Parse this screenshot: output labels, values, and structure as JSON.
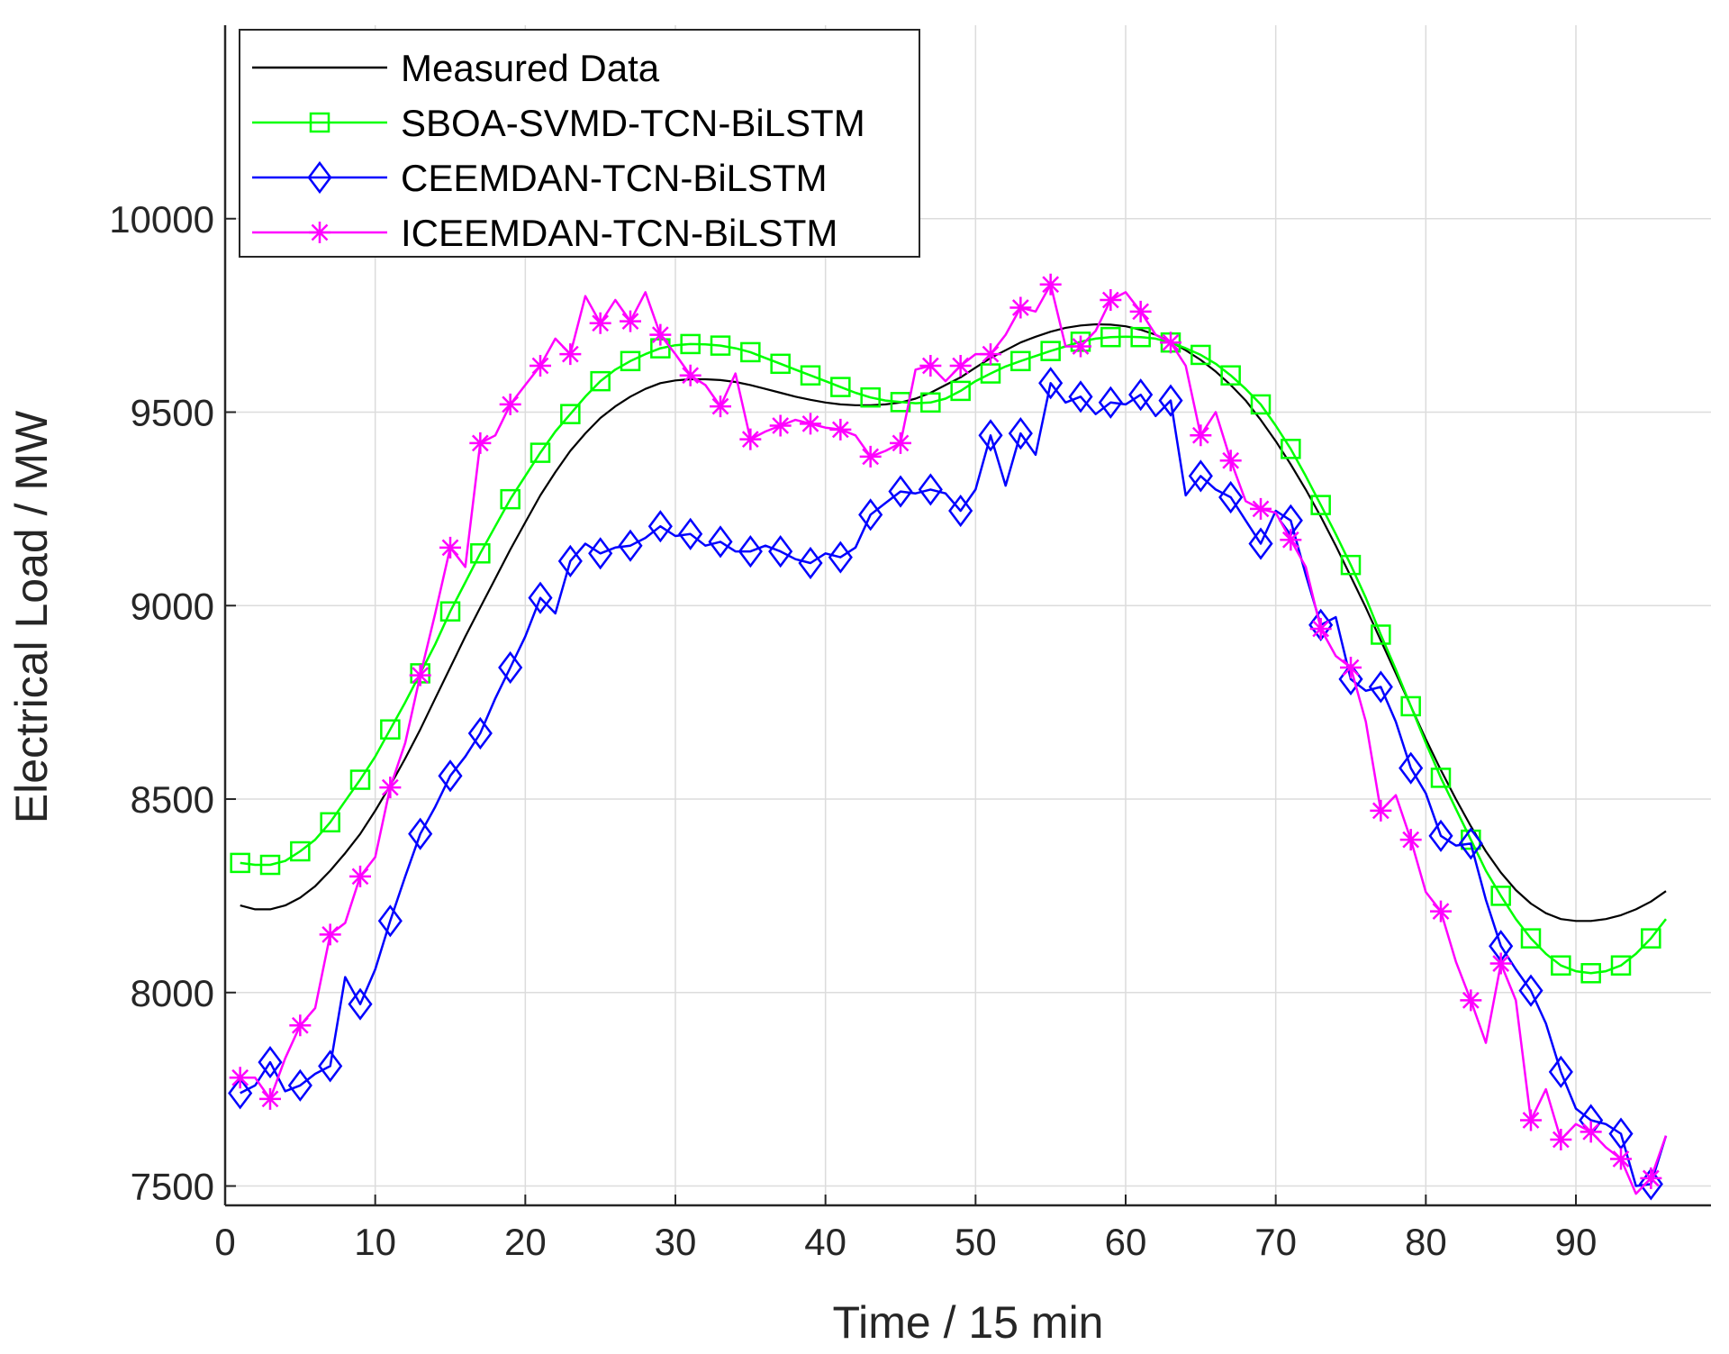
{
  "chart_data": {
    "type": "line",
    "title": "",
    "xlabel": "Time / 15 min",
    "ylabel": "Electrical Load / MW",
    "xlim": [
      0,
      99
    ],
    "ylim": [
      7450,
      10500
    ],
    "xticks": [
      0,
      10,
      20,
      30,
      40,
      50,
      60,
      70,
      80,
      90
    ],
    "yticks": [
      7500,
      8000,
      8500,
      9000,
      9500,
      10000
    ],
    "grid": true,
    "legend_position": "top-left",
    "x": [
      1,
      2,
      3,
      4,
      5,
      6,
      7,
      8,
      9,
      10,
      11,
      12,
      13,
      14,
      15,
      16,
      17,
      18,
      19,
      20,
      21,
      22,
      23,
      24,
      25,
      26,
      27,
      28,
      29,
      30,
      31,
      32,
      33,
      34,
      35,
      36,
      37,
      38,
      39,
      40,
      41,
      42,
      43,
      44,
      45,
      46,
      47,
      48,
      49,
      50,
      51,
      52,
      53,
      54,
      55,
      56,
      57,
      58,
      59,
      60,
      61,
      62,
      63,
      64,
      65,
      66,
      67,
      68,
      69,
      70,
      71,
      72,
      73,
      74,
      75,
      76,
      77,
      78,
      79,
      80,
      81,
      82,
      83,
      84,
      85,
      86,
      87,
      88,
      89,
      90,
      91,
      92,
      93,
      94,
      95,
      96
    ],
    "series": [
      {
        "name": "Measured Data",
        "color": "#000000",
        "marker": "none",
        "values": [
          8225,
          8215,
          8215,
          8225,
          8245,
          8275,
          8315,
          8360,
          8410,
          8470,
          8535,
          8605,
          8680,
          8760,
          8840,
          8920,
          8995,
          9070,
          9145,
          9215,
          9285,
          9345,
          9400,
          9445,
          9485,
          9515,
          9540,
          9560,
          9575,
          9582,
          9585,
          9585,
          9583,
          9578,
          9570,
          9560,
          9550,
          9540,
          9532,
          9525,
          9520,
          9518,
          9518,
          9520,
          9525,
          9535,
          9550,
          9570,
          9590,
          9615,
          9640,
          9660,
          9680,
          9695,
          9708,
          9718,
          9724,
          9727,
          9726,
          9722,
          9713,
          9700,
          9682,
          9660,
          9635,
          9605,
          9570,
          9530,
          9480,
          9425,
          9365,
          9300,
          9230,
          9155,
          9075,
          8995,
          8910,
          8825,
          8740,
          8655,
          8575,
          8500,
          8430,
          8365,
          8310,
          8265,
          8230,
          8205,
          8190,
          8185,
          8185,
          8190,
          8200,
          8215,
          8235,
          8262
        ]
      },
      {
        "name": "SBOA-SVMD-TCN-BiLSTM",
        "color": "#00ff00",
        "marker": "square",
        "values": [
          8335,
          8330,
          8330,
          8340,
          8365,
          8395,
          8440,
          8495,
          8550,
          8610,
          8680,
          8750,
          8825,
          8900,
          8985,
          9060,
          9135,
          9205,
          9275,
          9335,
          9395,
          9450,
          9495,
          9540,
          9580,
          9610,
          9632,
          9650,
          9665,
          9673,
          9676,
          9675,
          9672,
          9665,
          9655,
          9640,
          9625,
          9610,
          9595,
          9580,
          9565,
          9550,
          9538,
          9530,
          9526,
          9523,
          9525,
          9535,
          9555,
          9580,
          9600,
          9618,
          9632,
          9645,
          9658,
          9670,
          9682,
          9690,
          9694,
          9695,
          9694,
          9690,
          9680,
          9665,
          9648,
          9625,
          9595,
          9560,
          9520,
          9465,
          9405,
          9335,
          9260,
          9185,
          9105,
          9020,
          8925,
          8835,
          8740,
          8645,
          8555,
          8475,
          8395,
          8315,
          8250,
          8190,
          8140,
          8100,
          8070,
          8055,
          8050,
          8055,
          8070,
          8100,
          8140,
          8190
        ]
      },
      {
        "name": "CEEMDAN-TCN-BiLSTM",
        "color": "#0000ff",
        "marker": "diamond",
        "values": [
          7740,
          7760,
          7820,
          7745,
          7760,
          7790,
          7810,
          8040,
          7970,
          8060,
          8185,
          8300,
          8410,
          8480,
          8560,
          8610,
          8670,
          8760,
          8840,
          8920,
          9020,
          8980,
          9115,
          9160,
          9135,
          9150,
          9155,
          9175,
          9205,
          9180,
          9185,
          9155,
          9165,
          9140,
          9140,
          9155,
          9140,
          9120,
          9110,
          9135,
          9125,
          9150,
          9235,
          9265,
          9295,
          9290,
          9300,
          9290,
          9245,
          9300,
          9440,
          9310,
          9445,
          9390,
          9575,
          9525,
          9540,
          9495,
          9525,
          9520,
          9545,
          9490,
          9530,
          9285,
          9335,
          9300,
          9280,
          9220,
          9160,
          9245,
          9220,
          9080,
          8950,
          8970,
          8810,
          8780,
          8790,
          8700,
          8580,
          8515,
          8405,
          8380,
          8385,
          8240,
          8120,
          8060,
          8005,
          7920,
          7795,
          7700,
          7670,
          7660,
          7635,
          7500,
          7505,
          7630
        ]
      },
      {
        "name": "ICEEMDAN-TCN-BiLSTM",
        "color": "#ff00ff",
        "marker": "star",
        "values": [
          7780,
          7780,
          7725,
          7830,
          7915,
          7960,
          8150,
          8180,
          8300,
          8350,
          8530,
          8645,
          8820,
          8980,
          9150,
          9100,
          9420,
          9440,
          9520,
          9570,
          9620,
          9690,
          9650,
          9800,
          9730,
          9790,
          9735,
          9810,
          9700,
          9650,
          9595,
          9570,
          9515,
          9600,
          9430,
          9450,
          9465,
          9480,
          9470,
          9460,
          9455,
          9440,
          9385,
          9400,
          9420,
          9610,
          9620,
          9580,
          9620,
          9650,
          9650,
          9700,
          9770,
          9760,
          9830,
          9670,
          9670,
          9710,
          9790,
          9810,
          9760,
          9700,
          9680,
          9620,
          9440,
          9500,
          9375,
          9270,
          9250,
          9240,
          9170,
          9100,
          8940,
          8870,
          8840,
          8700,
          8470,
          8510,
          8395,
          8260,
          8210,
          8080,
          7980,
          7870,
          8075,
          7980,
          7670,
          7750,
          7620,
          7660,
          7640,
          7600,
          7570,
          7480,
          7520,
          7630
        ]
      }
    ]
  }
}
